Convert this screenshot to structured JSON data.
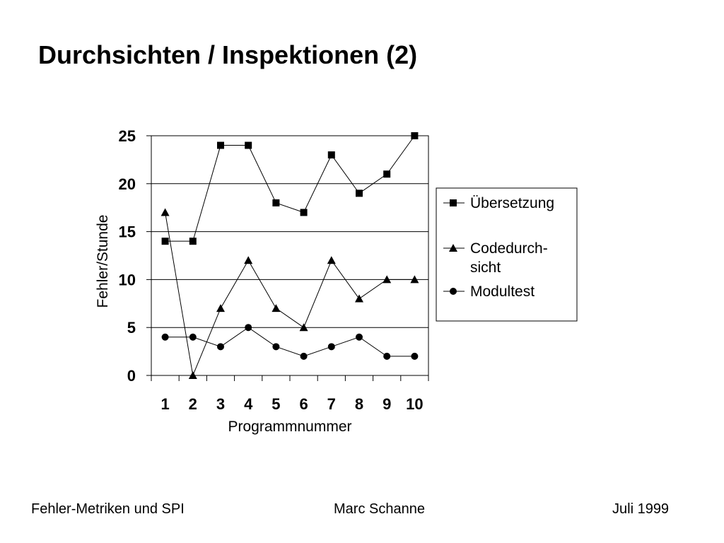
{
  "slide": {
    "title": "Durchsichten / Inspektionen (2)"
  },
  "footer": {
    "left": "Fehler-Metriken und SPI",
    "center": "Marc Schanne",
    "right": "Juli 1999"
  },
  "chart_data": {
    "type": "line",
    "title": "",
    "xlabel": "Programmnummer",
    "ylabel": "Fehler/Stunde",
    "categories": [
      "1",
      "2",
      "3",
      "4",
      "5",
      "6",
      "7",
      "8",
      "9",
      "10"
    ],
    "ylim": [
      0,
      25
    ],
    "yticks": [
      0,
      5,
      10,
      15,
      20,
      25
    ],
    "grid": "horizontal",
    "legend_position": "right",
    "series": [
      {
        "name": "Übersetzung",
        "name_lines": [
          "Übersetzung"
        ],
        "marker": "square",
        "values": [
          14,
          14,
          24,
          24,
          18,
          17,
          23,
          19,
          21,
          25
        ]
      },
      {
        "name": "Codedurch-sicht",
        "name_lines": [
          "Codedurch-",
          "sicht"
        ],
        "marker": "triangle",
        "values": [
          17,
          0,
          7,
          12,
          7,
          5,
          12,
          8,
          10,
          10
        ]
      },
      {
        "name": "Modultest",
        "name_lines": [
          "Modultest"
        ],
        "marker": "circle",
        "values": [
          4,
          4,
          3,
          5,
          3,
          2,
          3,
          4,
          2,
          2
        ]
      }
    ],
    "colors": {
      "line": "#000000",
      "grid": "#000000",
      "background": "#ffffff"
    }
  }
}
